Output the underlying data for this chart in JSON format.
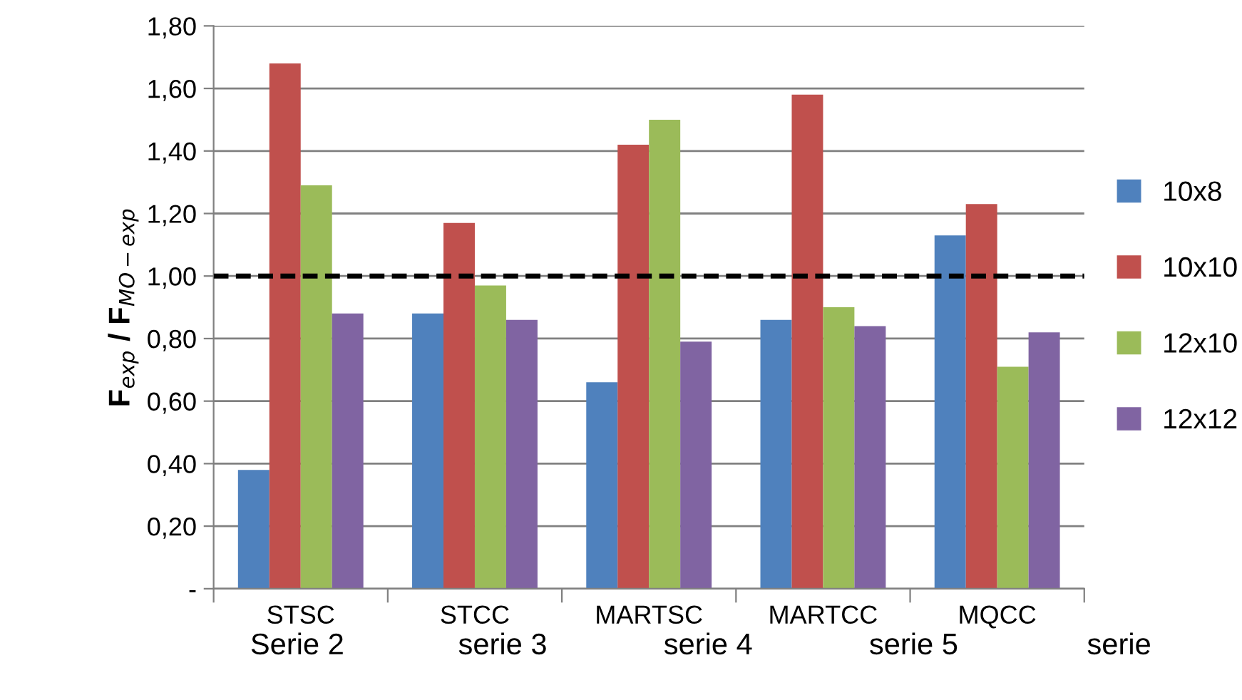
{
  "chart_data": {
    "type": "bar",
    "ylabel": "F$_{exp}$ / F$_{MO−exp}$",
    "categories": [
      "STSC",
      "STCC",
      "MARTSC",
      "MARTCC",
      "MQCC"
    ],
    "series": [
      {
        "name": "10x8",
        "color": "#4f81bd",
        "values": [
          0.38,
          0.88,
          0.66,
          0.86,
          1.13
        ]
      },
      {
        "name": "10x10",
        "color": "#c0504d",
        "values": [
          1.68,
          1.17,
          1.42,
          1.58,
          1.23
        ]
      },
      {
        "name": "12x10",
        "color": "#9bbb59",
        "values": [
          1.29,
          0.97,
          1.5,
          0.9,
          0.71
        ]
      },
      {
        "name": "12x12",
        "color": "#8064a2",
        "values": [
          0.88,
          0.86,
          0.79,
          0.84,
          0.82
        ]
      }
    ],
    "ylim": [
      0,
      1.8
    ],
    "yticks": [
      {
        "value": 0,
        "label": "-"
      },
      {
        "value": 0.2,
        "label": "0,20"
      },
      {
        "value": 0.4,
        "label": "0,40"
      },
      {
        "value": 0.6,
        "label": "0,60"
      },
      {
        "value": 0.8,
        "label": "0,80"
      },
      {
        "value": 1.0,
        "label": "1,00"
      },
      {
        "value": 1.2,
        "label": "1,20"
      },
      {
        "value": 1.4,
        "label": "1,40"
      },
      {
        "value": 1.6,
        "label": "1,60"
      },
      {
        "value": 1.8,
        "label": "1,80"
      }
    ],
    "ref_lines": [
      {
        "axis": "y",
        "value": 1.0,
        "color": "#000000",
        "line_style": "dashed"
      }
    ],
    "annotations": [
      "Serie 2",
      "serie 3",
      "serie 4",
      "serie 5",
      "serie"
    ],
    "grid": "y",
    "legend": "right"
  }
}
